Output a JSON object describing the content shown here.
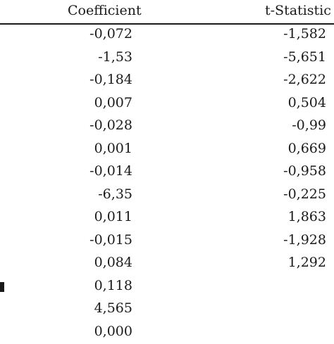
{
  "table": {
    "headers": {
      "coefficient": "Coefficient",
      "t_statistic": "t-Statistic"
    },
    "rows": [
      {
        "coefficient": "-0,072",
        "t_statistic": "-1,582"
      },
      {
        "coefficient": "-1,53",
        "t_statistic": "-5,651"
      },
      {
        "coefficient": "-0,184",
        "t_statistic": "-2,622"
      },
      {
        "coefficient": "0,007",
        "t_statistic": "0,504"
      },
      {
        "coefficient": "-0,028",
        "t_statistic": "-0,99"
      },
      {
        "coefficient": "0,001",
        "t_statistic": "0,669"
      },
      {
        "coefficient": "-0,014",
        "t_statistic": "-0,958"
      },
      {
        "coefficient": "-6,35",
        "t_statistic": "-0,225"
      },
      {
        "coefficient": "0,011",
        "t_statistic": "1,863"
      },
      {
        "coefficient": "-0,015",
        "t_statistic": "-1,928"
      },
      {
        "coefficient": "0,084",
        "t_statistic": "1,292"
      },
      {
        "coefficient": "0,118",
        "t_statistic": ""
      },
      {
        "coefficient": "4,565",
        "t_statistic": ""
      },
      {
        "coefficient": "0,000",
        "t_statistic": ""
      }
    ]
  }
}
